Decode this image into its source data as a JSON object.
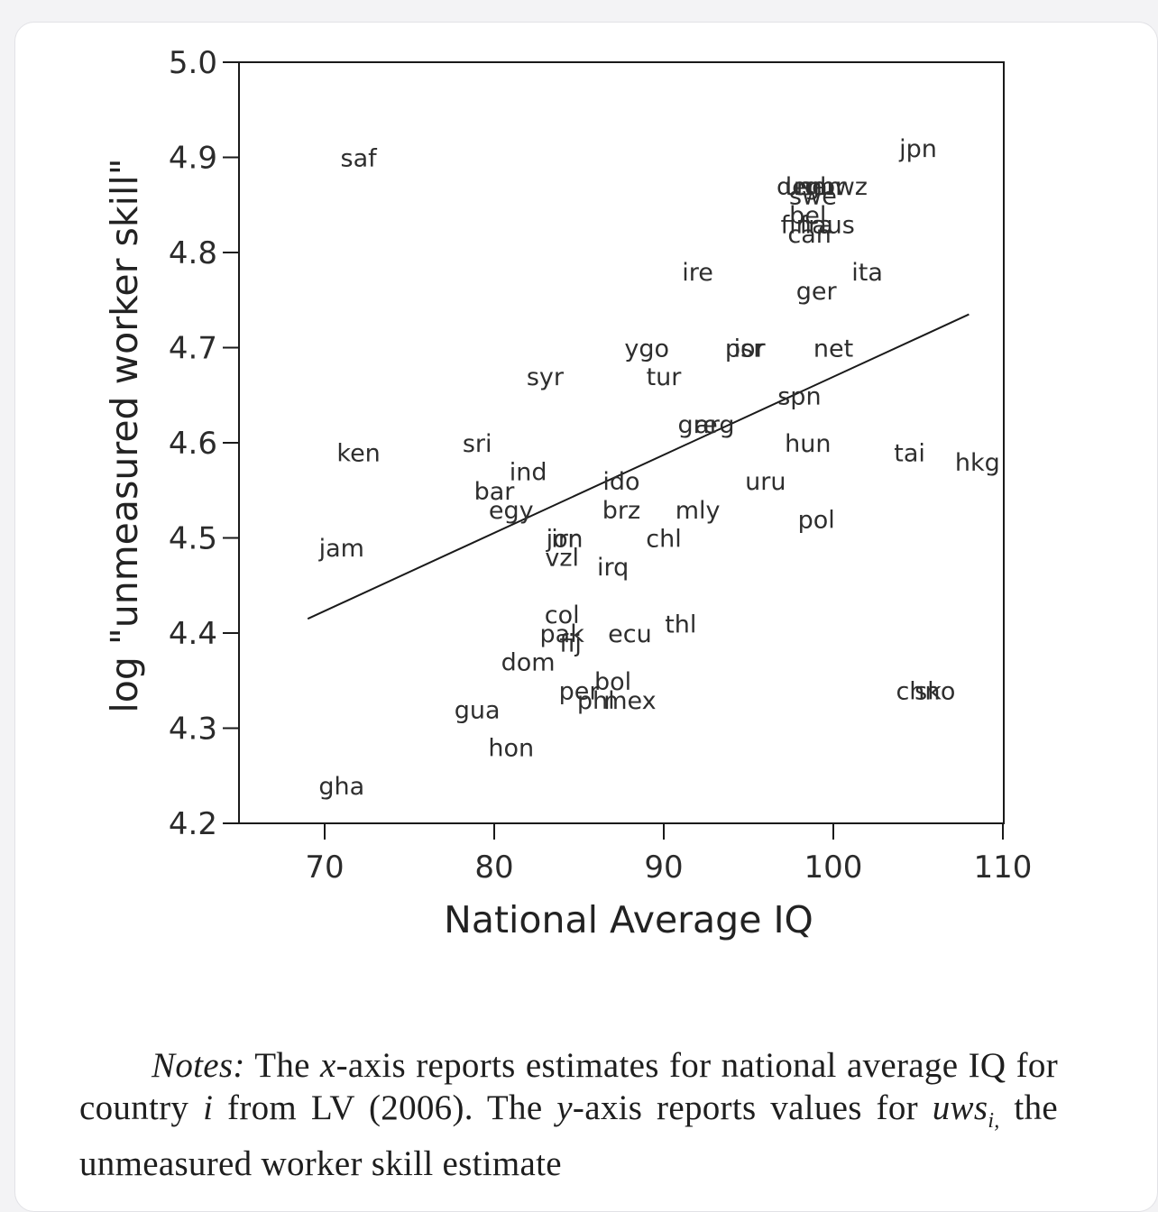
{
  "chart_data": {
    "type": "scatter",
    "xlabel": "National Average IQ",
    "ylabel": "log \"unmeasured worker skill\"",
    "xlim": [
      65,
      110
    ],
    "ylim": [
      4.2,
      5.0
    ],
    "xticks": [
      "70",
      "80",
      "90",
      "100",
      "110"
    ],
    "yticks": [
      "5.0",
      "4.9",
      "4.8",
      "4.7",
      "4.6",
      "4.5",
      "4.4",
      "4.3",
      "4.2"
    ],
    "grid": false,
    "fit_line": {
      "x": [
        69,
        108
      ],
      "y": [
        4.415,
        4.735
      ]
    },
    "points": [
      {
        "label": "saf",
        "x": 72,
        "y": 4.9
      },
      {
        "label": "jpn",
        "x": 105,
        "y": 4.91
      },
      {
        "label": "den",
        "x": 98,
        "y": 4.87
      },
      {
        "label": "usa",
        "x": 98.4,
        "y": 4.87
      },
      {
        "label": "nor",
        "x": 99,
        "y": 4.87
      },
      {
        "label": "gbr",
        "x": 99.5,
        "y": 4.87
      },
      {
        "label": "nwz",
        "x": 100.6,
        "y": 4.87
      },
      {
        "label": "swe",
        "x": 98.8,
        "y": 4.86
      },
      {
        "label": "bel",
        "x": 98.5,
        "y": 4.84
      },
      {
        "label": "fin",
        "x": 97.8,
        "y": 4.83
      },
      {
        "label": "fra",
        "x": 99,
        "y": 4.83
      },
      {
        "label": "aus",
        "x": 100,
        "y": 4.83
      },
      {
        "label": "can",
        "x": 98.6,
        "y": 4.82
      },
      {
        "label": "ire",
        "x": 92,
        "y": 4.78
      },
      {
        "label": "ita",
        "x": 102,
        "y": 4.78
      },
      {
        "label": "ger",
        "x": 99,
        "y": 4.76
      },
      {
        "label": "ygo",
        "x": 89,
        "y": 4.7
      },
      {
        "label": "isr",
        "x": 95,
        "y": 4.7
      },
      {
        "label": "por",
        "x": 94.8,
        "y": 4.7
      },
      {
        "label": "net",
        "x": 100,
        "y": 4.7
      },
      {
        "label": "syr",
        "x": 83,
        "y": 4.67
      },
      {
        "label": "tur",
        "x": 90,
        "y": 4.67
      },
      {
        "label": "spn",
        "x": 98,
        "y": 4.65
      },
      {
        "label": "gre",
        "x": 92,
        "y": 4.62
      },
      {
        "label": "arg",
        "x": 93,
        "y": 4.62
      },
      {
        "label": "ken",
        "x": 72,
        "y": 4.59
      },
      {
        "label": "sri",
        "x": 79,
        "y": 4.6
      },
      {
        "label": "hun",
        "x": 98.5,
        "y": 4.6
      },
      {
        "label": "tai",
        "x": 104.5,
        "y": 4.59
      },
      {
        "label": "hkg",
        "x": 108.5,
        "y": 4.58
      },
      {
        "label": "ind",
        "x": 82,
        "y": 4.57
      },
      {
        "label": "ido",
        "x": 87.5,
        "y": 4.56
      },
      {
        "label": "bar",
        "x": 80,
        "y": 4.55
      },
      {
        "label": "uru",
        "x": 96,
        "y": 4.56
      },
      {
        "label": "egy",
        "x": 81,
        "y": 4.53
      },
      {
        "label": "brz",
        "x": 87.5,
        "y": 4.53
      },
      {
        "label": "mly",
        "x": 92,
        "y": 4.53
      },
      {
        "label": "pol",
        "x": 99,
        "y": 4.52
      },
      {
        "label": "jam",
        "x": 71,
        "y": 4.49
      },
      {
        "label": "jor",
        "x": 84,
        "y": 4.5
      },
      {
        "label": "irn",
        "x": 84.3,
        "y": 4.5
      },
      {
        "label": "vzl",
        "x": 84,
        "y": 4.48
      },
      {
        "label": "chl",
        "x": 90,
        "y": 4.5
      },
      {
        "label": "irq",
        "x": 87,
        "y": 4.47
      },
      {
        "label": "col",
        "x": 84,
        "y": 4.42
      },
      {
        "label": "thl",
        "x": 91,
        "y": 4.41
      },
      {
        "label": "pak",
        "x": 84,
        "y": 4.4
      },
      {
        "label": "fij",
        "x": 84.5,
        "y": 4.39
      },
      {
        "label": "ecu",
        "x": 88,
        "y": 4.4
      },
      {
        "label": "dom",
        "x": 82,
        "y": 4.37
      },
      {
        "label": "bol",
        "x": 87,
        "y": 4.35
      },
      {
        "label": "per",
        "x": 85,
        "y": 4.34
      },
      {
        "label": "phl",
        "x": 86,
        "y": 4.33
      },
      {
        "label": "mex",
        "x": 88,
        "y": 4.33
      },
      {
        "label": "chn",
        "x": 105,
        "y": 4.34
      },
      {
        "label": "sko",
        "x": 106,
        "y": 4.34
      },
      {
        "label": "gua",
        "x": 79,
        "y": 4.32
      },
      {
        "label": "hon",
        "x": 81,
        "y": 4.28
      },
      {
        "label": "gha",
        "x": 71,
        "y": 4.24
      }
    ]
  },
  "notes": {
    "lead": "Notes:",
    "t1": " The ",
    "x": "x",
    "t2": "-axis reports estimates for national average IQ for country ",
    "i": "i",
    "t3": " from LV (2006). The ",
    "y": "y",
    "t4": "-axis reports values for ",
    "uws": "uws",
    "sub": "i,",
    "t5": " the unmeasured worker skill estimate"
  }
}
